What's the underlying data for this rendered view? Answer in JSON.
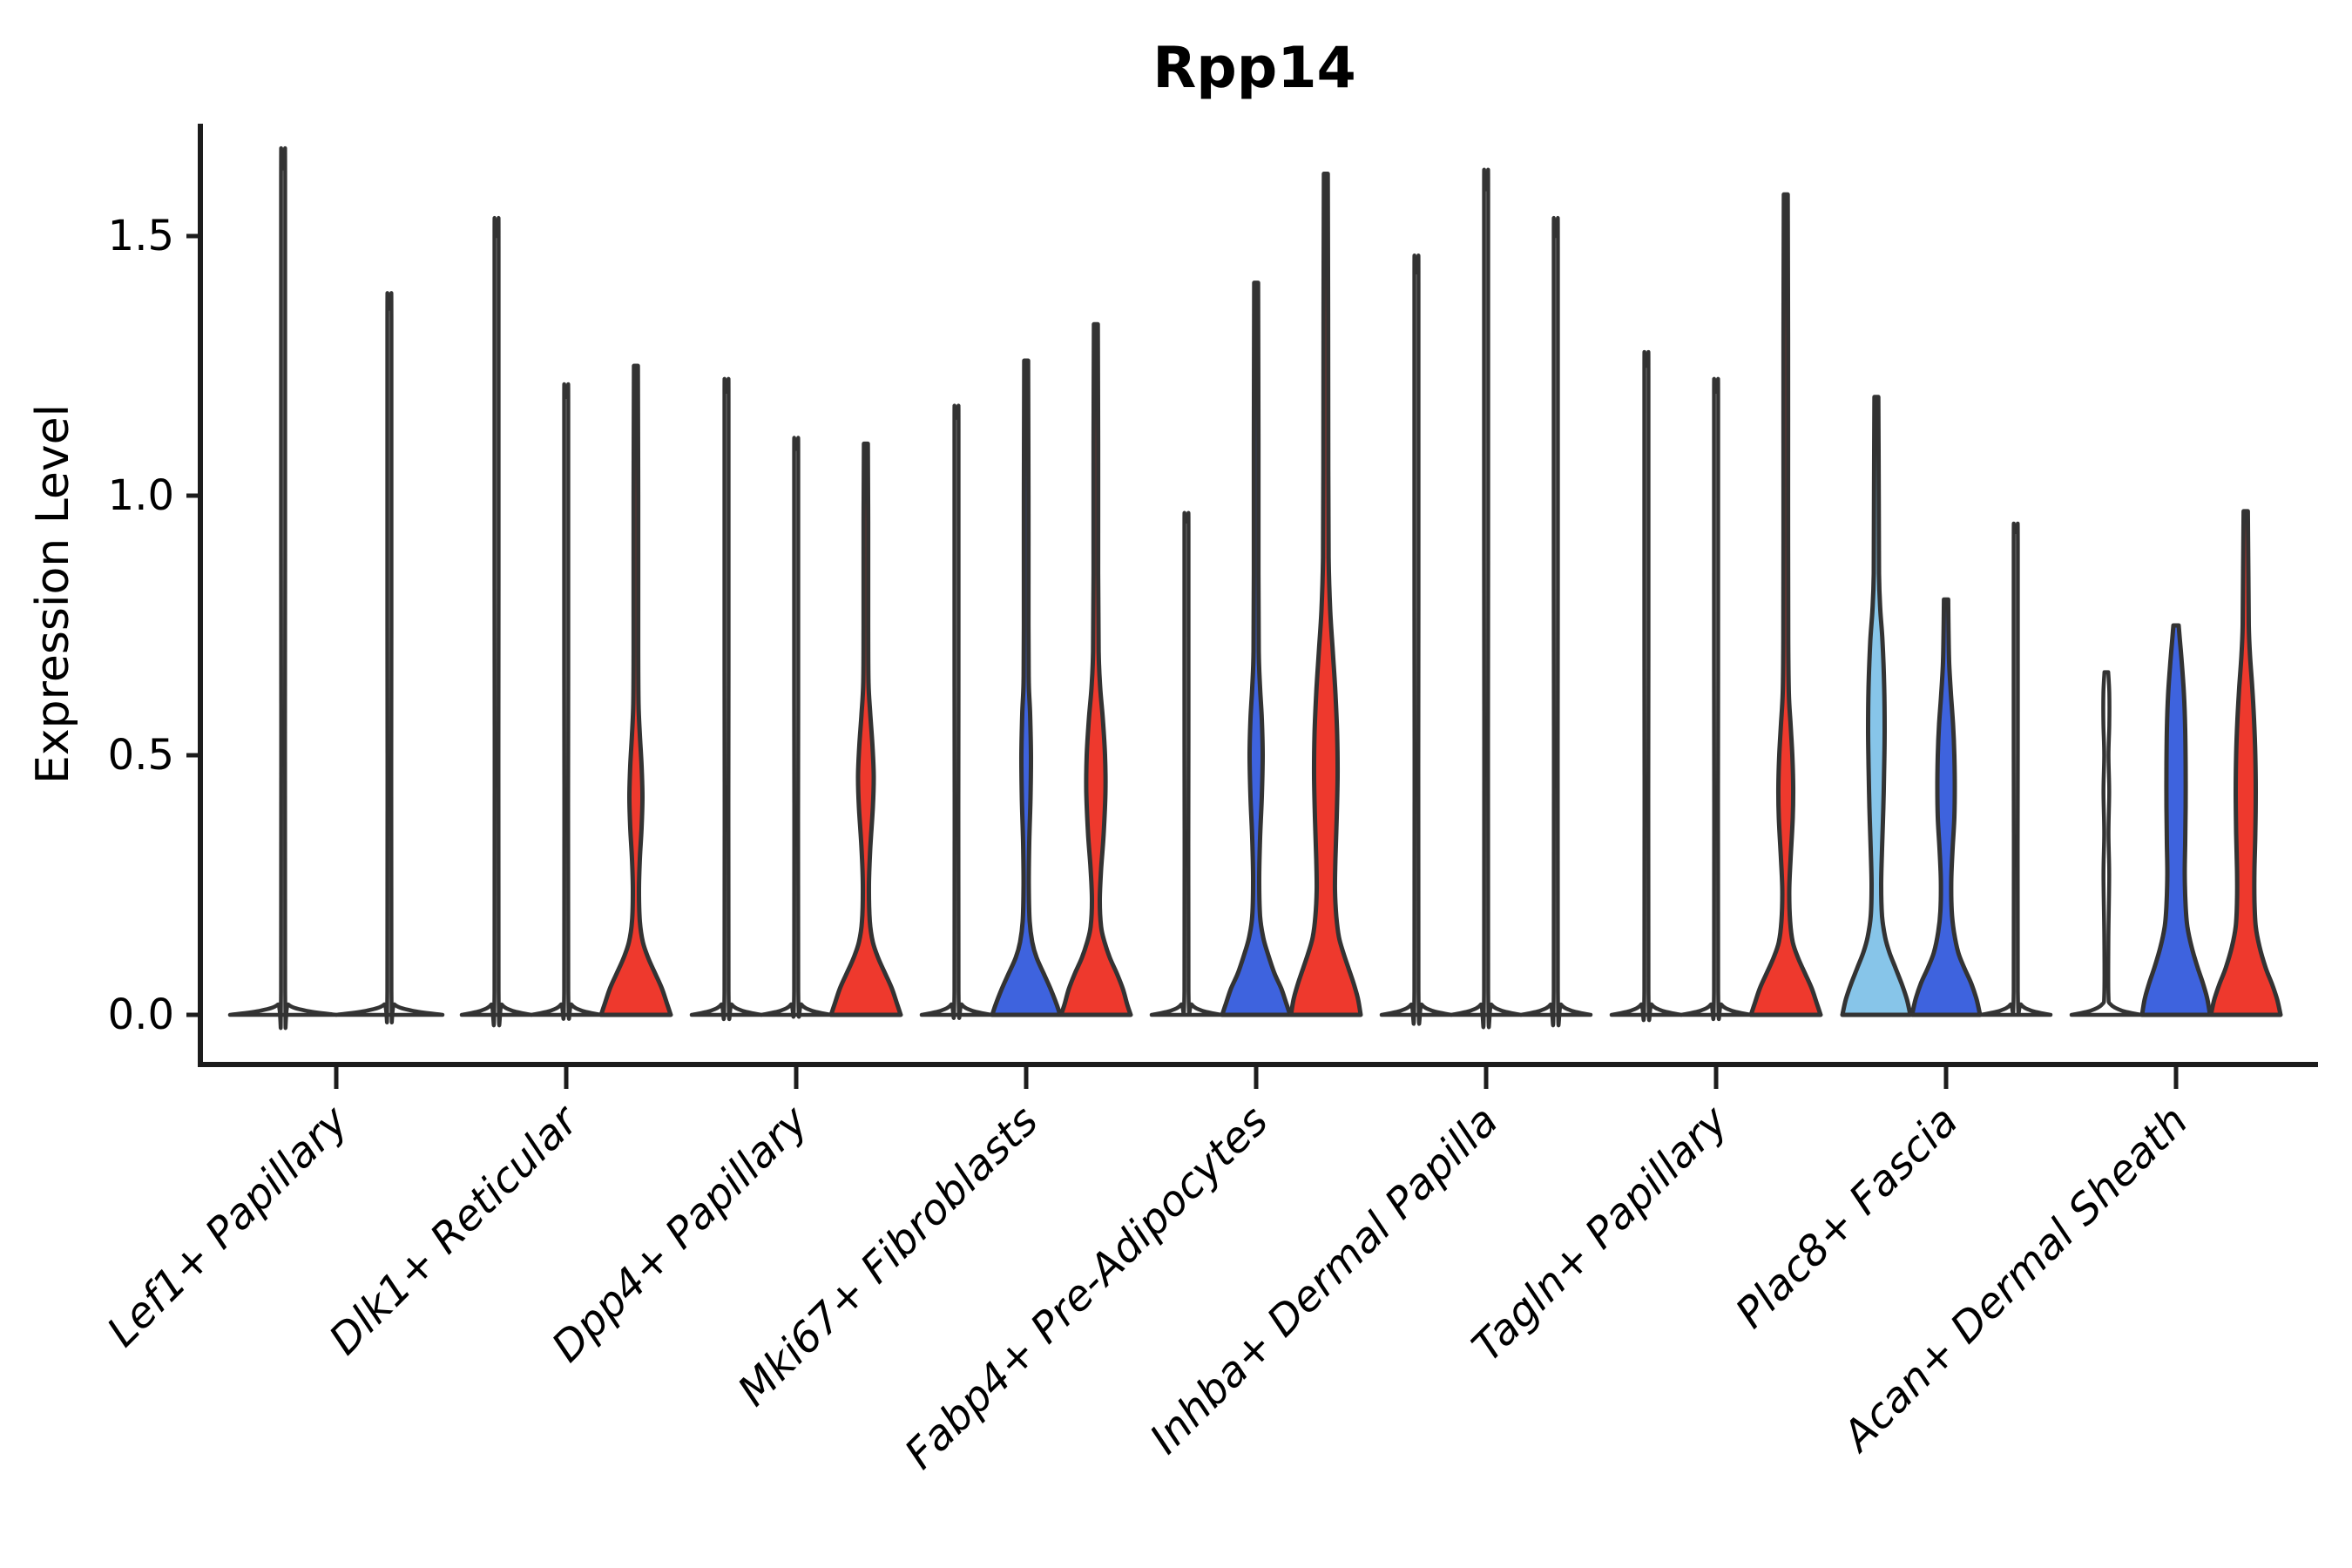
{
  "chart_data": {
    "type": "violin",
    "title": "Rpp14",
    "ylabel": "Expression Level",
    "xlabel": "",
    "legend_position": "none",
    "grid": false,
    "ylim": [
      -0.1,
      1.72
    ],
    "yticks": [
      "0.0",
      "0.5",
      "1.0",
      "1.5"
    ],
    "colors": {
      "red": "#ee392d",
      "blue": "#3e63de",
      "lightblue": "#87c5e9",
      "none": "#ffffff",
      "outline": "#333333",
      "spine": "#1c1c1c",
      "text": "#000000"
    },
    "categories": [
      "Lef1+ Papillary",
      "Dlk1+ Reticular",
      "Dpp4+ Papillary",
      "Mki67+ Fibroblasts",
      "Fabp4+ Pre-Adipocytes",
      "Inhba+ Dermal Papilla",
      "Tagln+ Papillary",
      "Plac8+ Fascia",
      "Acan+ Dermal Sheath"
    ],
    "groups": [
      {
        "category": "Lef1+ Papillary",
        "violins": [
          {
            "kind": "spike",
            "color": "none",
            "max": 1.63
          },
          {
            "kind": "spike",
            "color": "none",
            "max": 1.36
          }
        ]
      },
      {
        "category": "Dlk1+ Reticular",
        "violins": [
          {
            "kind": "spike",
            "color": "none",
            "max": 1.5
          },
          {
            "kind": "spike",
            "color": "none",
            "max": 1.19
          },
          {
            "kind": "violin",
            "color": "red",
            "max": 1.25,
            "profile": [
              [
                0,
                40
              ],
              [
                0.02,
                36
              ],
              [
                0.05,
                30
              ],
              [
                0.08,
                22
              ],
              [
                0.11,
                14
              ],
              [
                0.14,
                8
              ],
              [
                0.18,
                4.5
              ],
              [
                0.24,
                3.5
              ],
              [
                0.3,
                4.5
              ],
              [
                0.36,
                6.5
              ],
              [
                0.42,
                7.5
              ],
              [
                0.48,
                6.5
              ],
              [
                0.54,
                4.5
              ],
              [
                0.6,
                3
              ],
              [
                0.7,
                2.6
              ],
              [
                1.0,
                2.6
              ],
              [
                1.25,
                2.2
              ]
            ]
          }
        ]
      },
      {
        "category": "Dpp4+ Papillary",
        "violins": [
          {
            "kind": "spike",
            "color": "none",
            "max": 1.2
          },
          {
            "kind": "spike",
            "color": "none",
            "max": 1.09
          },
          {
            "kind": "violin",
            "color": "red",
            "max": 1.1,
            "profile": [
              [
                0,
                40
              ],
              [
                0.02,
                36
              ],
              [
                0.05,
                30
              ],
              [
                0.08,
                22
              ],
              [
                0.11,
                14
              ],
              [
                0.14,
                8
              ],
              [
                0.18,
                4.5
              ],
              [
                0.25,
                3.5
              ],
              [
                0.32,
                5
              ],
              [
                0.4,
                8
              ],
              [
                0.46,
                9
              ],
              [
                0.52,
                7.5
              ],
              [
                0.58,
                5
              ],
              [
                0.64,
                3
              ],
              [
                0.75,
                2.6
              ],
              [
                0.95,
                2.6
              ],
              [
                1.1,
                2.2
              ]
            ]
          }
        ]
      },
      {
        "category": "Mki67+ Fibroblasts",
        "violins": [
          {
            "kind": "spike",
            "color": "none",
            "max": 1.15
          },
          {
            "kind": "violin",
            "color": "blue",
            "max": 1.26,
            "profile": [
              [
                0,
                39
              ],
              [
                0.02,
                35
              ],
              [
                0.05,
                28
              ],
              [
                0.08,
                20
              ],
              [
                0.11,
                12
              ],
              [
                0.14,
                7
              ],
              [
                0.18,
                4
              ],
              [
                0.25,
                3
              ],
              [
                0.33,
                3.5
              ],
              [
                0.42,
                5
              ],
              [
                0.5,
                5.5
              ],
              [
                0.58,
                4.5
              ],
              [
                0.64,
                3
              ],
              [
                0.75,
                2.6
              ],
              [
                1.0,
                2.6
              ],
              [
                1.26,
                2.2
              ]
            ]
          },
          {
            "kind": "violin",
            "color": "red",
            "max": 1.33,
            "profile": [
              [
                0,
                40
              ],
              [
                0.02,
                36
              ],
              [
                0.05,
                31
              ],
              [
                0.08,
                24
              ],
              [
                0.11,
                16
              ],
              [
                0.14,
                10
              ],
              [
                0.17,
                6
              ],
              [
                0.22,
                4.5
              ],
              [
                0.28,
                6
              ],
              [
                0.35,
                9
              ],
              [
                0.43,
                11
              ],
              [
                0.5,
                10.5
              ],
              [
                0.57,
                8
              ],
              [
                0.63,
                5
              ],
              [
                0.7,
                3.2
              ],
              [
                0.85,
                2.6
              ],
              [
                1.1,
                2.6
              ],
              [
                1.33,
                2.2
              ]
            ]
          }
        ]
      },
      {
        "category": "Fabp4+ Pre-Adipocytes",
        "violins": [
          {
            "kind": "spike",
            "color": "none",
            "max": 0.95
          },
          {
            "kind": "violin",
            "color": "blue",
            "max": 1.41,
            "profile": [
              [
                0,
                39
              ],
              [
                0.02,
                35
              ],
              [
                0.05,
                29
              ],
              [
                0.08,
                21
              ],
              [
                0.12,
                13
              ],
              [
                0.15,
                8
              ],
              [
                0.19,
                4.5
              ],
              [
                0.26,
                3.5
              ],
              [
                0.34,
                4.5
              ],
              [
                0.42,
                6.5
              ],
              [
                0.5,
                7.5
              ],
              [
                0.57,
                6.5
              ],
              [
                0.63,
                4.5
              ],
              [
                0.7,
                3
              ],
              [
                0.85,
                2.6
              ],
              [
                1.1,
                2.6
              ],
              [
                1.41,
                2.2
              ]
            ]
          },
          {
            "kind": "violin",
            "color": "red",
            "max": 1.62,
            "profile": [
              [
                0,
                40
              ],
              [
                0.03,
                37
              ],
              [
                0.06,
                32
              ],
              [
                0.09,
                26
              ],
              [
                0.12,
                20
              ],
              [
                0.15,
                15
              ],
              [
                0.19,
                12
              ],
              [
                0.24,
                10.5
              ],
              [
                0.3,
                11
              ],
              [
                0.38,
                12.5
              ],
              [
                0.46,
                13.5
              ],
              [
                0.54,
                13
              ],
              [
                0.62,
                11
              ],
              [
                0.7,
                8
              ],
              [
                0.78,
                5
              ],
              [
                0.88,
                3.2
              ],
              [
                1.05,
                2.8
              ],
              [
                1.35,
                2.6
              ],
              [
                1.62,
                2.2
              ]
            ]
          }
        ]
      },
      {
        "category": "Inhba+ Dermal Papilla",
        "violins": [
          {
            "kind": "spike",
            "color": "none",
            "max": 1.43
          },
          {
            "kind": "spike",
            "color": "none",
            "max": 1.59
          },
          {
            "kind": "spike",
            "color": "none",
            "max": 1.5
          }
        ]
      },
      {
        "category": "Tagln+ Papillary",
        "violins": [
          {
            "kind": "spike",
            "color": "none",
            "max": 1.25
          },
          {
            "kind": "spike",
            "color": "none",
            "max": 1.2
          },
          {
            "kind": "violin",
            "color": "red",
            "max": 1.58,
            "profile": [
              [
                0,
                40
              ],
              [
                0.02,
                36
              ],
              [
                0.05,
                30
              ],
              [
                0.08,
                22
              ],
              [
                0.11,
                14
              ],
              [
                0.14,
                8
              ],
              [
                0.18,
                5
              ],
              [
                0.24,
                4
              ],
              [
                0.3,
                5.5
              ],
              [
                0.38,
                8
              ],
              [
                0.44,
                8.5
              ],
              [
                0.5,
                7.5
              ],
              [
                0.56,
                5.5
              ],
              [
                0.62,
                3.5
              ],
              [
                0.72,
                2.8
              ],
              [
                1.0,
                2.6
              ],
              [
                1.3,
                2.6
              ],
              [
                1.58,
                2.2
              ]
            ]
          }
        ]
      },
      {
        "category": "Plac8+ Fascia",
        "violins": [
          {
            "kind": "violin",
            "color": "lightblue",
            "max": 1.19,
            "profile": [
              [
                0,
                39
              ],
              [
                0.03,
                35
              ],
              [
                0.06,
                29
              ],
              [
                0.09,
                22
              ],
              [
                0.12,
                15
              ],
              [
                0.15,
                10
              ],
              [
                0.19,
                6.5
              ],
              [
                0.25,
                5.5
              ],
              [
                0.32,
                6.5
              ],
              [
                0.4,
                8
              ],
              [
                0.48,
                9
              ],
              [
                0.55,
                9.5
              ],
              [
                0.63,
                9
              ],
              [
                0.72,
                7
              ],
              [
                0.78,
                4.5
              ],
              [
                0.85,
                3
              ],
              [
                1.0,
                2.7
              ],
              [
                1.19,
                2.2
              ]
            ]
          },
          {
            "kind": "violin",
            "color": "blue",
            "max": 0.8,
            "profile": [
              [
                0,
                39
              ],
              [
                0.03,
                35
              ],
              [
                0.06,
                29
              ],
              [
                0.09,
                21
              ],
              [
                0.12,
                14
              ],
              [
                0.16,
                9
              ],
              [
                0.2,
                6.5
              ],
              [
                0.26,
                6
              ],
              [
                0.32,
                7.5
              ],
              [
                0.38,
                9.5
              ],
              [
                0.44,
                10
              ],
              [
                0.5,
                9.5
              ],
              [
                0.56,
                8
              ],
              [
                0.62,
                5.5
              ],
              [
                0.68,
                3.5
              ],
              [
                0.74,
                2.8
              ],
              [
                0.8,
                2.4
              ]
            ]
          },
          {
            "kind": "spike",
            "color": "none",
            "max": 0.93
          }
        ]
      },
      {
        "category": "Acan+ Dermal Sheath",
        "violins": [
          {
            "kind": "spike",
            "color": "none",
            "max": 0.66,
            "profile": [
              [
                0,
                40
              ],
              [
                0.008,
                18
              ],
              [
                0.02,
                5
              ],
              [
                0.04,
                2.4
              ],
              [
                0.15,
                2.4
              ],
              [
                0.27,
                3.3
              ],
              [
                0.35,
                2.5
              ],
              [
                0.43,
                3.3
              ],
              [
                0.5,
                2.5
              ],
              [
                0.56,
                3.4
              ],
              [
                0.62,
                3.4
              ],
              [
                0.66,
                2.2
              ]
            ]
          },
          {
            "kind": "violin",
            "color": "blue",
            "max": 0.75,
            "profile": [
              [
                0,
                39
              ],
              [
                0.03,
                36
              ],
              [
                0.06,
                31
              ],
              [
                0.09,
                25
              ],
              [
                0.13,
                18
              ],
              [
                0.17,
                13
              ],
              [
                0.21,
                11
              ],
              [
                0.27,
                10
              ],
              [
                0.33,
                10.5
              ],
              [
                0.4,
                11
              ],
              [
                0.48,
                11
              ],
              [
                0.55,
                10.5
              ],
              [
                0.62,
                9
              ],
              [
                0.68,
                6.5
              ],
              [
                0.72,
                4.5
              ],
              [
                0.75,
                3
              ]
            ]
          },
          {
            "kind": "violin",
            "color": "red",
            "max": 0.97,
            "profile": [
              [
                0,
                40
              ],
              [
                0.03,
                36
              ],
              [
                0.06,
                30
              ],
              [
                0.09,
                23
              ],
              [
                0.13,
                16
              ],
              [
                0.17,
                11.5
              ],
              [
                0.22,
                10
              ],
              [
                0.28,
                10
              ],
              [
                0.35,
                11
              ],
              [
                0.43,
                11.5
              ],
              [
                0.5,
                11
              ],
              [
                0.57,
                9.5
              ],
              [
                0.63,
                7.5
              ],
              [
                0.69,
                5
              ],
              [
                0.75,
                3.5
              ],
              [
                0.85,
                3
              ],
              [
                0.97,
                2.4
              ]
            ]
          }
        ]
      }
    ]
  }
}
